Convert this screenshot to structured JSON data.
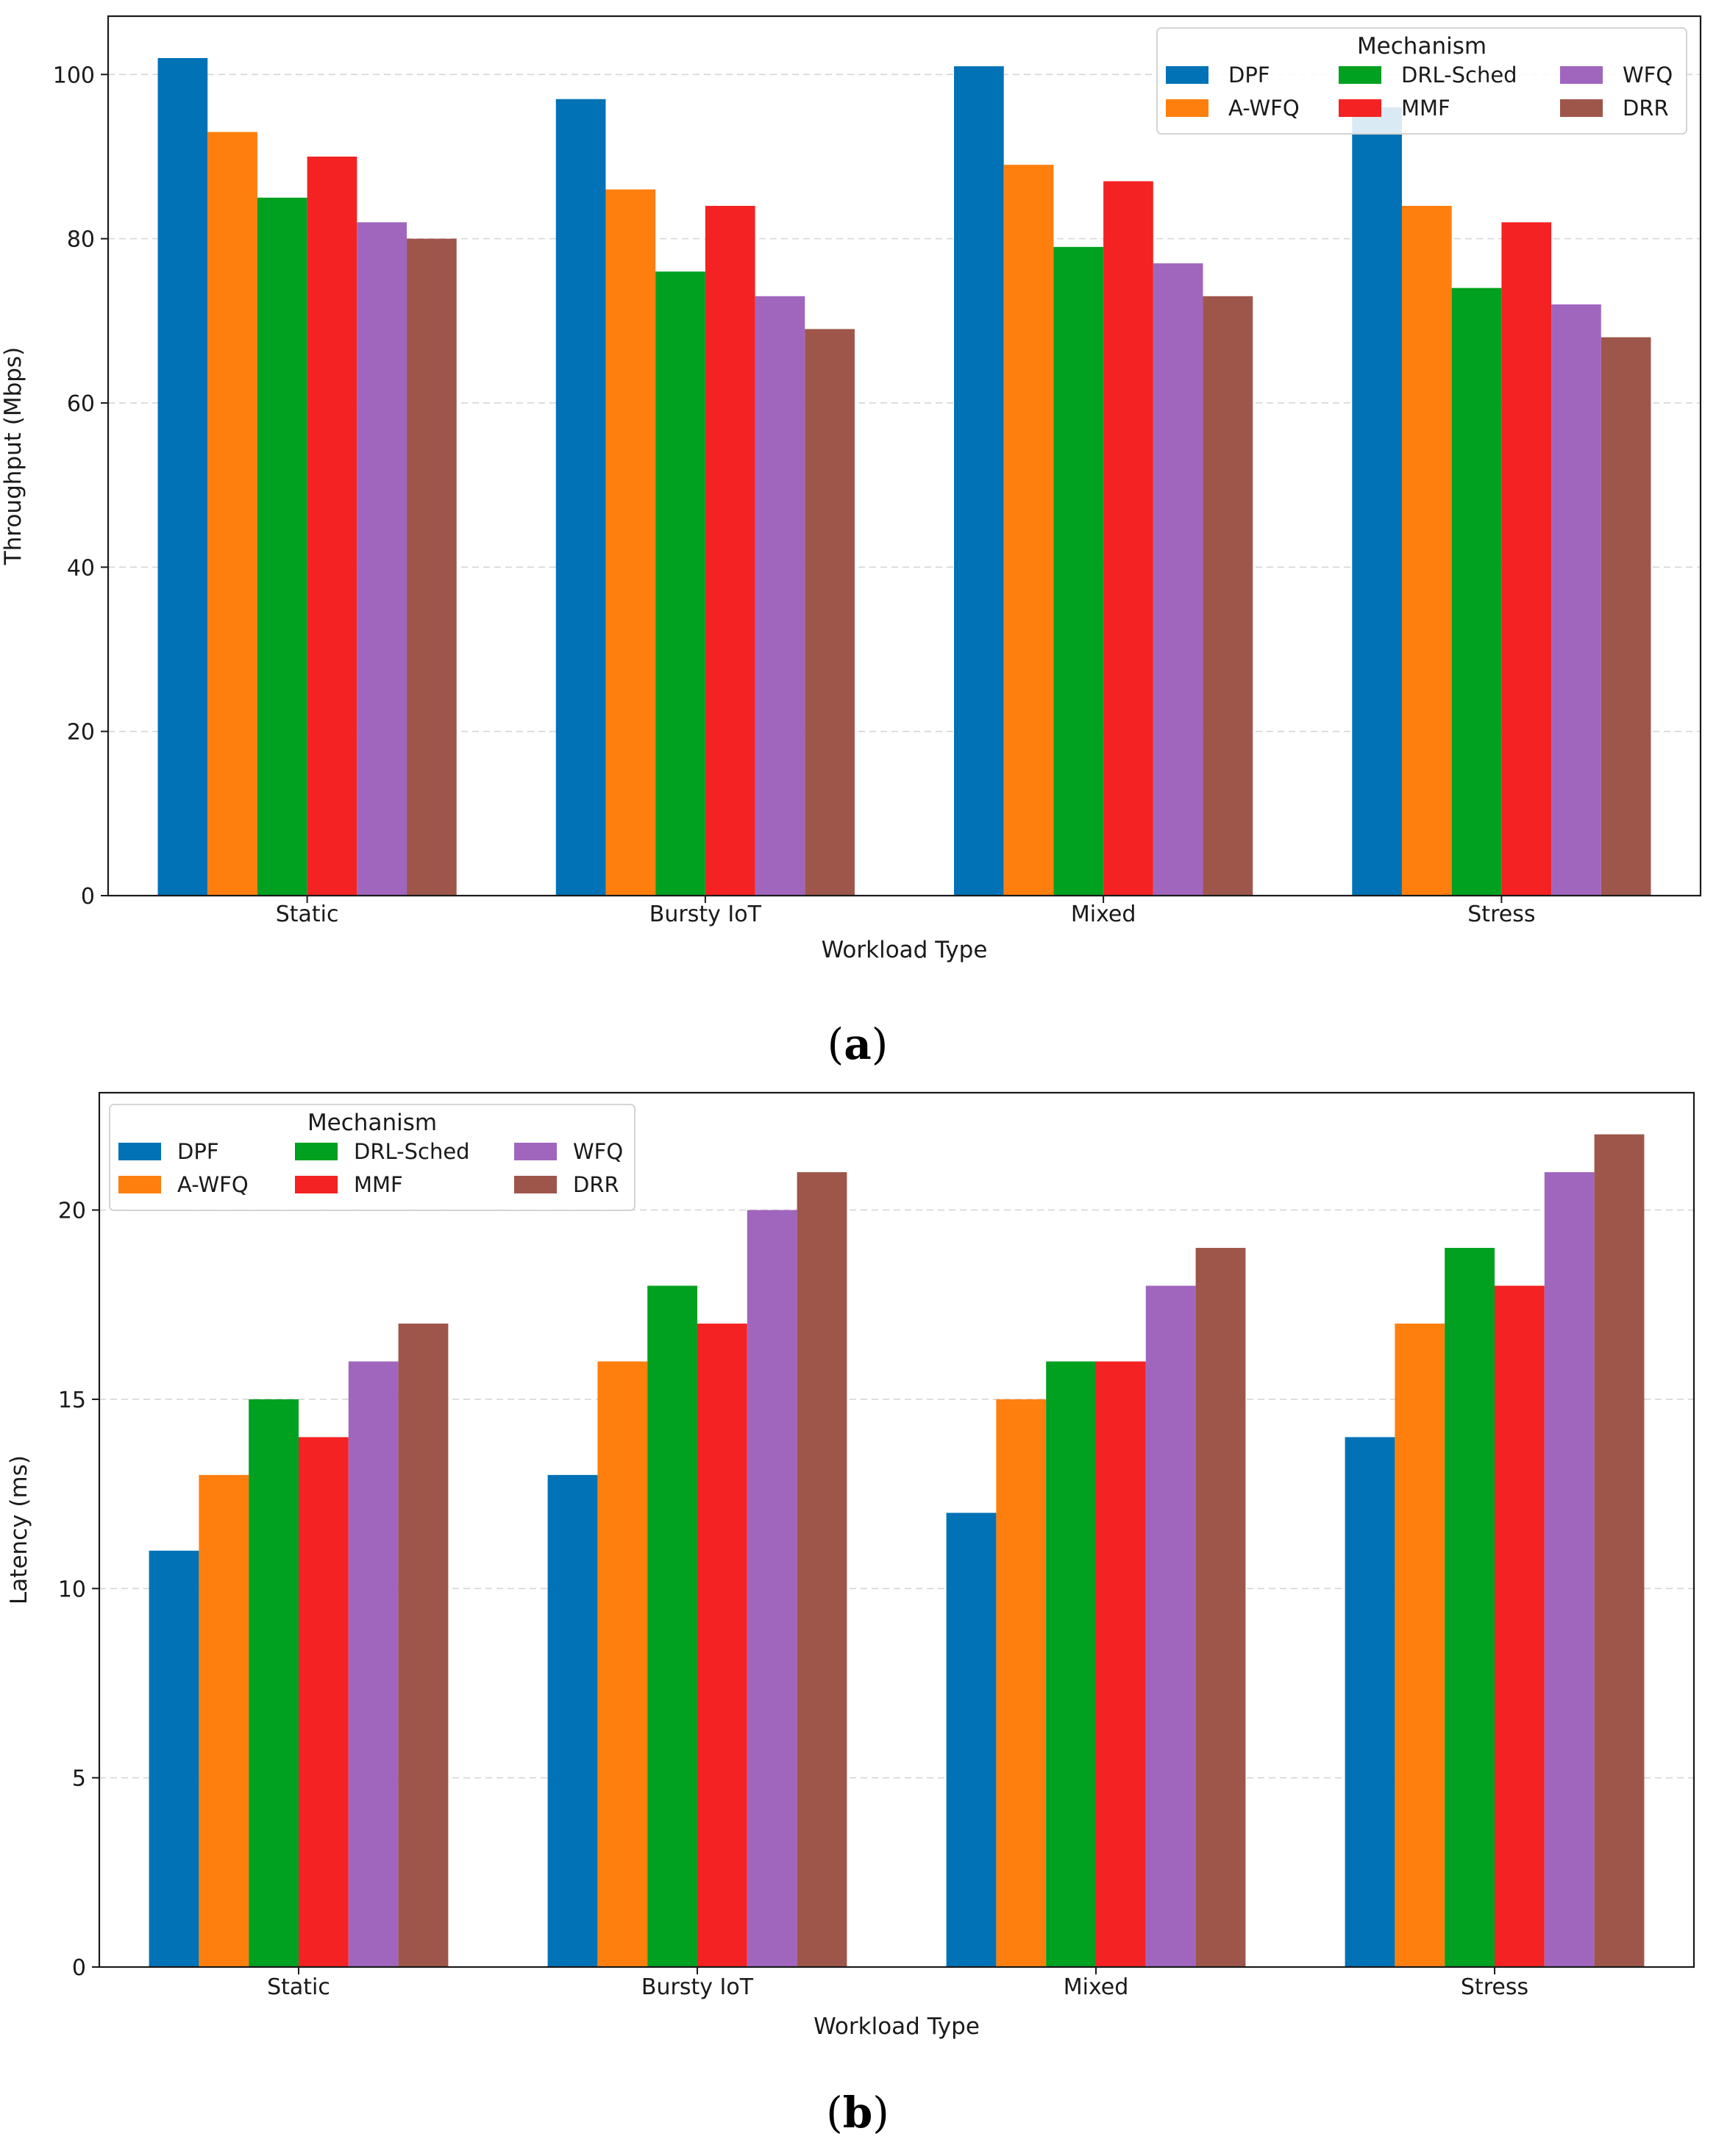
{
  "series_colors": [
    "#0072b5",
    "#ff7f0e",
    "#00a020",
    "#f42222",
    "#a066be",
    "#9e564b"
  ],
  "chart_data": [
    {
      "id": "a",
      "type": "bar",
      "panel_label": "a",
      "xlabel": "Workload Type",
      "ylabel": "Throughput (Mbps)",
      "ylim": [
        0,
        107.1
      ],
      "yticks": [
        0,
        20,
        40,
        60,
        80,
        100
      ],
      "grid": true,
      "legend_position": "top-right",
      "legend_title": "Mechanism",
      "categories": [
        "Static",
        "Bursty IoT",
        "Mixed",
        "Stress"
      ],
      "series": [
        {
          "name": "DPF",
          "values": [
            102,
            97,
            101,
            96
          ]
        },
        {
          "name": "A-WFQ",
          "values": [
            93,
            86,
            89,
            84
          ]
        },
        {
          "name": "DRL-Sched",
          "values": [
            85,
            76,
            79,
            74
          ]
        },
        {
          "name": "MMF",
          "values": [
            90,
            84,
            87,
            82
          ]
        },
        {
          "name": "WFQ",
          "values": [
            82,
            73,
            77,
            72
          ]
        },
        {
          "name": "DRR",
          "values": [
            80,
            69,
            73,
            68
          ]
        }
      ]
    },
    {
      "id": "b",
      "type": "bar",
      "panel_label": "b",
      "xlabel": "Workload Type",
      "ylabel": "Latency (ms)",
      "ylim": [
        0,
        23.1
      ],
      "yticks": [
        0,
        5,
        10,
        15,
        20
      ],
      "grid": true,
      "legend_position": "top-left",
      "legend_title": "Mechanism",
      "categories": [
        "Static",
        "Bursty IoT",
        "Mixed",
        "Stress"
      ],
      "series": [
        {
          "name": "DPF",
          "values": [
            11,
            13,
            12,
            14
          ]
        },
        {
          "name": "A-WFQ",
          "values": [
            13,
            16,
            15,
            17
          ]
        },
        {
          "name": "DRL-Sched",
          "values": [
            15,
            18,
            16,
            19
          ]
        },
        {
          "name": "MMF",
          "values": [
            14,
            17,
            16,
            18
          ]
        },
        {
          "name": "WFQ",
          "values": [
            16,
            20,
            18,
            21
          ]
        },
        {
          "name": "DRR",
          "values": [
            17,
            21,
            19,
            22
          ]
        }
      ]
    }
  ]
}
